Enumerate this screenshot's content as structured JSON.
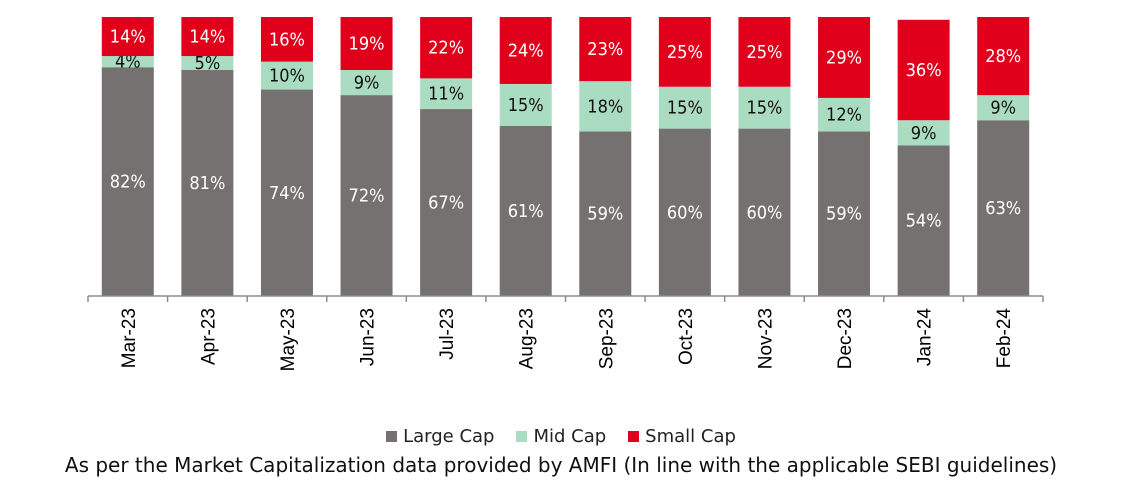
{
  "chart_data": {
    "type": "bar",
    "stacked": true,
    "categories": [
      "Mar-23",
      "Apr-23",
      "May-23",
      "Jun-23",
      "Jul-23",
      "Aug-23",
      "Sep-23",
      "Oct-23",
      "Nov-23",
      "Dec-23",
      "Jan-24",
      "Feb-24"
    ],
    "series": [
      {
        "name": "Large Cap",
        "color": "#767171",
        "label_color": "#ffffff",
        "values": [
          82,
          81,
          74,
          72,
          67,
          61,
          59,
          60,
          60,
          59,
          54,
          63
        ]
      },
      {
        "name": "Mid Cap",
        "color": "#a9dcc0",
        "label_color": "#111111",
        "values": [
          4,
          5,
          10,
          9,
          11,
          15,
          18,
          15,
          15,
          12,
          9,
          9
        ]
      },
      {
        "name": "Small Cap",
        "color": "#e0001b",
        "label_color": "#ffffff",
        "values": [
          14,
          14,
          16,
          19,
          22,
          24,
          23,
          25,
          25,
          29,
          36,
          28
        ]
      }
    ],
    "value_suffix": "%",
    "ylim": [
      0,
      100
    ],
    "grid": false,
    "legend_position": "bottom"
  },
  "footnote": "As per the Market Capitalization data provided by AMFI (In line with the applicable SEBI guidelines)"
}
